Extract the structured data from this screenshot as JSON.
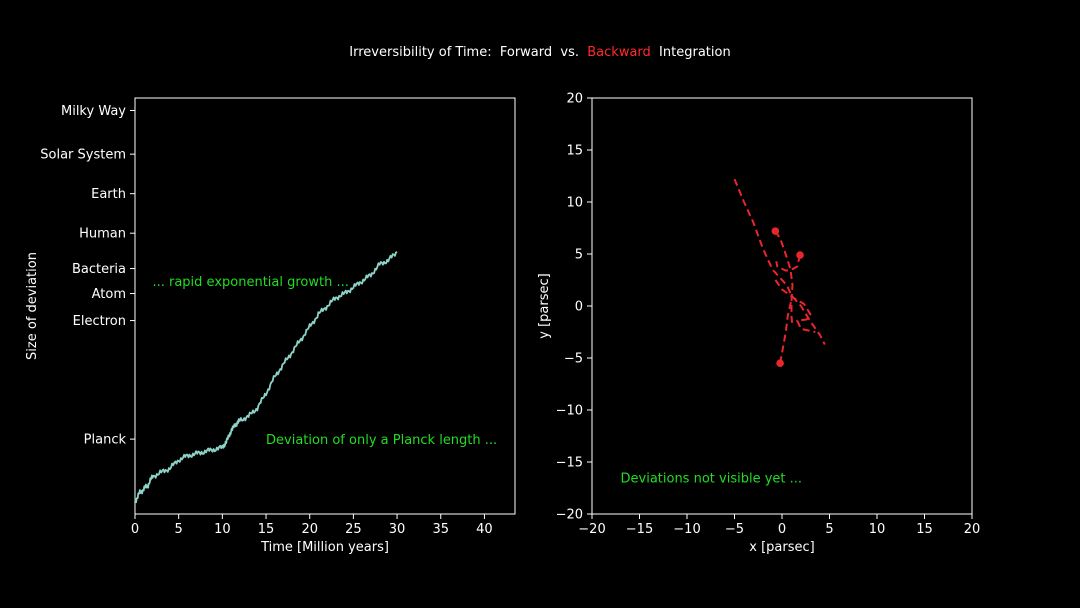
{
  "title": {
    "prefix": "Irreversibility of Time:  Forward  vs.  ",
    "highlight": "Backward",
    "suffix": "  Integration",
    "highlight_color": "#ff2b2b"
  },
  "chart_data": [
    {
      "type": "line",
      "xlabel": "Time [Million years]",
      "ylabel": "Size of deviation",
      "xlim": [
        0,
        43.5
      ],
      "x_ticks": [
        0,
        5,
        10,
        15,
        20,
        25,
        30,
        35,
        40
      ],
      "y_tick_labels": [
        {
          "label": "Planck",
          "level": 0.18
        },
        {
          "label": "Electron",
          "level": 0.465
        },
        {
          "label": "Atom",
          "level": 0.53
        },
        {
          "label": "Bacteria",
          "level": 0.59
        },
        {
          "label": "Human",
          "level": 0.675
        },
        {
          "label": "Earth",
          "level": 0.77
        },
        {
          "label": "Solar System",
          "level": 0.865
        },
        {
          "label": "Milky Way",
          "level": 0.97
        }
      ],
      "series": [
        {
          "color": "#8dd3c7",
          "x": [
            0,
            0.5,
            1,
            1.5,
            2,
            3,
            4,
            5,
            6,
            7,
            8,
            9,
            10,
            10.5,
            11,
            11.5,
            12,
            13,
            14,
            15,
            16,
            17,
            18,
            19,
            20,
            21,
            22,
            23,
            24,
            25,
            26,
            27,
            28,
            29,
            30
          ],
          "level": [
            0.03,
            0.05,
            0.06,
            0.07,
            0.09,
            0.1,
            0.11,
            0.13,
            0.14,
            0.145,
            0.15,
            0.155,
            0.16,
            0.175,
            0.2,
            0.215,
            0.225,
            0.235,
            0.255,
            0.29,
            0.33,
            0.36,
            0.39,
            0.42,
            0.45,
            0.48,
            0.5,
            0.52,
            0.53,
            0.545,
            0.56,
            0.575,
            0.6,
            0.61,
            0.63
          ]
        }
      ],
      "annotations": [
        {
          "text": "... rapid exponential growth ...",
          "x": 2,
          "level": 0.56
        },
        {
          "text": "Deviation of only a Planck length ...",
          "x": 15,
          "level": 0.18
        }
      ]
    },
    {
      "type": "line",
      "xlabel": "x [parsec]",
      "ylabel": "y [parsec]",
      "xlim": [
        -20,
        20
      ],
      "ylim": [
        -20,
        20
      ],
      "x_ticks": [
        -20,
        -15,
        -10,
        -5,
        0,
        5,
        10,
        15,
        20
      ],
      "y_ticks": [
        -20,
        -15,
        -10,
        -5,
        0,
        5,
        10,
        15,
        20
      ],
      "series": [
        {
          "color": "#e8262b",
          "dashed": true,
          "x": [
            -5,
            -4,
            -3,
            -2,
            -1.5,
            -1,
            -0.5,
            0.5,
            1,
            2,
            3,
            4,
            4.5
          ],
          "y": [
            12.2,
            10,
            8,
            5.5,
            4.5,
            3.5,
            3,
            2,
            1,
            0,
            -1.5,
            -2.8,
            -3.7
          ]
        },
        {
          "color": "#e8262b",
          "dashed": true,
          "x": [
            -0.7,
            -0.2,
            0.2,
            0.6,
            0.9,
            1.1,
            1.0,
            1.0,
            1.1
          ],
          "y": [
            7.2,
            6.5,
            5.5,
            4.4,
            3.5,
            2.0,
            0.5,
            -1.0,
            -2.0
          ]
        },
        {
          "color": "#e8262b",
          "dashed": true,
          "x": [
            1.9,
            1.6,
            1.0,
            0.4,
            -0.5,
            -0.6
          ],
          "y": [
            4.9,
            3.8,
            3.5,
            3.4,
            3.8,
            4.3
          ]
        },
        {
          "color": "#e8262b",
          "dashed": true,
          "x": [
            -0.7,
            0.0,
            1.2,
            2.3,
            3.0,
            2.6,
            1.6,
            2.0,
            3.5
          ],
          "y": [
            2.5,
            1.6,
            0.8,
            0.2,
            -0.8,
            -1.3,
            -1.4,
            -2.2,
            -2.5
          ]
        },
        {
          "color": "#e8262b",
          "dashed": true,
          "x": [
            -0.2,
            0.1,
            0.4,
            0.6,
            0.9,
            1.1
          ],
          "y": [
            -5.5,
            -4.0,
            -2.5,
            -1.0,
            0.2,
            1.0
          ]
        }
      ],
      "points": [
        {
          "x": -0.7,
          "y": 7.2
        },
        {
          "x": 1.9,
          "y": 4.9
        },
        {
          "x": -0.2,
          "y": -5.5
        }
      ],
      "annotations": [
        {
          "text": "Deviations not visible yet ...",
          "x": -17,
          "y": -16.5
        }
      ]
    }
  ]
}
